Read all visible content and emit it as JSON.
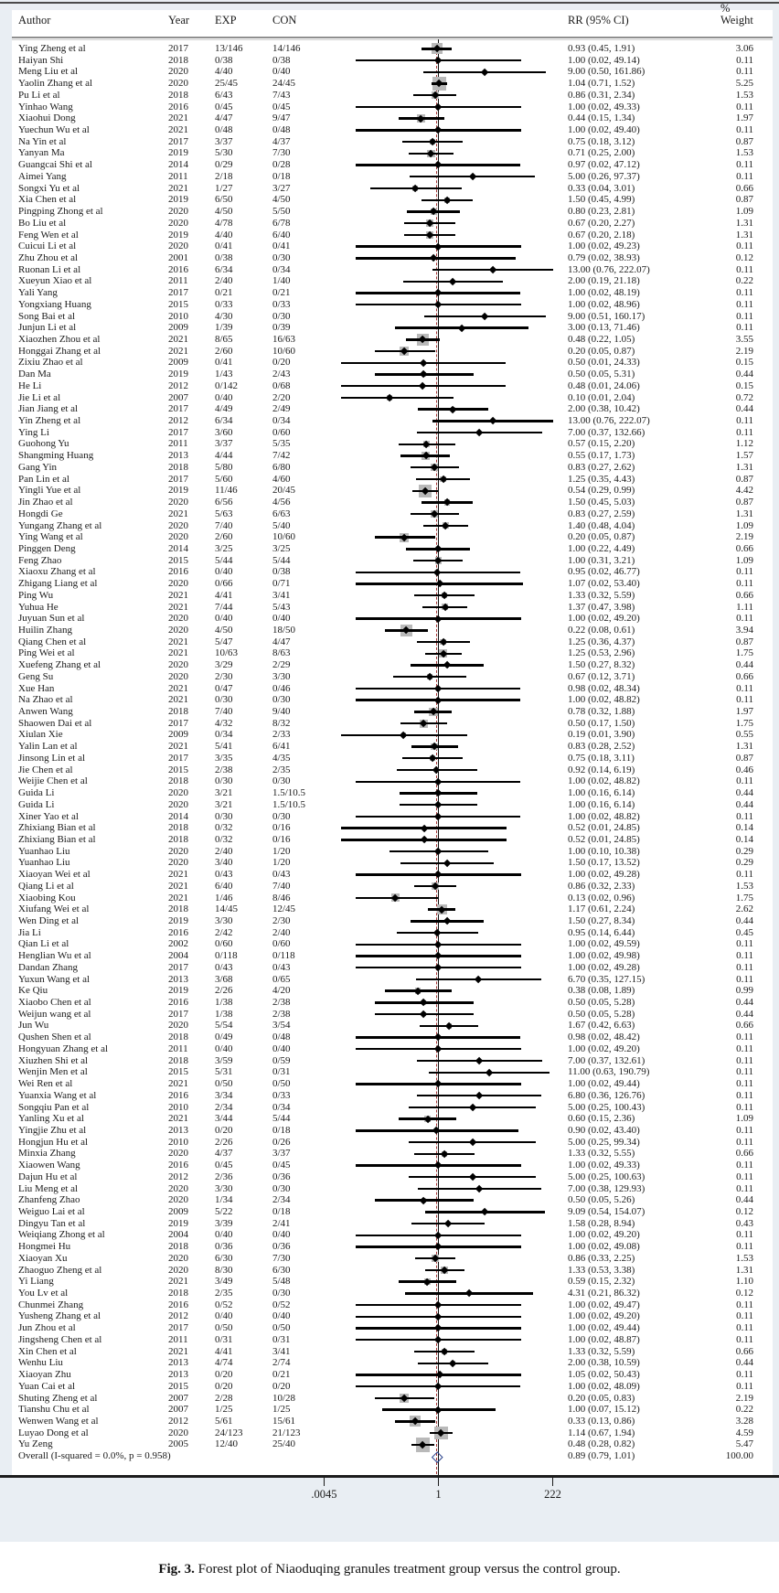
{
  "figure": {
    "header": {
      "author": "Author",
      "year": "Year",
      "exp": "EXP",
      "con": "CON",
      "rr": "RR (95% CI)",
      "weight_pct": "%",
      "weight": "Weight"
    },
    "axis": {
      "labels": [
        ".0045",
        "1",
        "222"
      ],
      "values": [
        0.0045,
        1,
        222
      ]
    },
    "overall": {
      "label": "Overall  (I-squared = 0.0%, p = 0.958)",
      "est": 0.89,
      "lo": 0.79,
      "hi": 1.01,
      "rr_text": "0.89 (0.79, 1.01)",
      "weight": "100.00"
    },
    "colors": {
      "figure_bg": "#e9eef3",
      "box": "#b9b9b9",
      "marker": "#000000",
      "ref_line": "#111111",
      "overall_line_dashed": "#a23636",
      "overall_diamond": "#27408b"
    },
    "caption": {
      "bold": "Fig. 3.",
      "text": " Forest plot of Niaoduqing granules treatment group versus the control group."
    }
  },
  "chart_data": {
    "type": "forest",
    "x_scale": "log",
    "xlim": [
      0.0045,
      222
    ],
    "x_ticks": [
      0.0045,
      1,
      222
    ],
    "null_line": 1,
    "overall_dashed_line_at": 0.89,
    "columns": [
      "author",
      "year",
      "exp",
      "con",
      "rr",
      "ci_low",
      "ci_high",
      "weight_pct"
    ],
    "studies": [
      [
        "Ying Zheng et al",
        "2017",
        "13/146",
        "14/146",
        0.93,
        0.45,
        1.91,
        "3.06"
      ],
      [
        "Haiyan Shi",
        "2018",
        "0/38",
        "0/38",
        1.0,
        0.02,
        49.14,
        "0.11"
      ],
      [
        "Meng Liu et al",
        "2020",
        "4/40",
        "0/40",
        9.0,
        0.5,
        161.86,
        "0.11"
      ],
      [
        "Yaolin Zhang et al",
        "2020",
        "25/45",
        "24/45",
        1.04,
        0.71,
        1.52,
        "5.25"
      ],
      [
        "Pu Li et al",
        "2018",
        "6/43",
        "7/43",
        0.86,
        0.31,
        2.34,
        "1.53"
      ],
      [
        "Yinhao Wang",
        "2016",
        "0/45",
        "0/45",
        1.0,
        0.02,
        49.33,
        "0.11"
      ],
      [
        "Xiaohui Dong",
        "2021",
        "4/47",
        "9/47",
        0.44,
        0.15,
        1.34,
        "1.97"
      ],
      [
        "Yuechun Wu et al",
        "2021",
        "0/48",
        "0/48",
        1.0,
        0.02,
        49.4,
        "0.11"
      ],
      [
        "Na Yin et al",
        "2017",
        "3/37",
        "4/37",
        0.75,
        0.18,
        3.12,
        "0.87"
      ],
      [
        "Yanyan Ma",
        "2019",
        "5/30",
        "7/30",
        0.71,
        0.25,
        2.0,
        "1.53"
      ],
      [
        "Guangcai Shi et al",
        "2014",
        "0/29",
        "0/28",
        0.97,
        0.02,
        47.12,
        "0.11"
      ],
      [
        "Aimei Yang",
        "2011",
        "2/18",
        "0/18",
        5.0,
        0.26,
        97.37,
        "0.11"
      ],
      [
        "Songxi Yu et al",
        "2021",
        "1/27",
        "3/27",
        0.33,
        0.04,
        3.01,
        "0.66"
      ],
      [
        "Xia Chen et al",
        "2019",
        "6/50",
        "4/50",
        1.5,
        0.45,
        4.99,
        "0.87"
      ],
      [
        "Pingping Zhong et al",
        "2020",
        "4/50",
        "5/50",
        0.8,
        0.23,
        2.81,
        "1.09"
      ],
      [
        "Bo Liu et al",
        "2020",
        "4/78",
        "6/78",
        0.67,
        0.2,
        2.27,
        "1.31"
      ],
      [
        "Feng Wen et al",
        "2019",
        "4/40",
        "6/40",
        0.67,
        0.2,
        2.18,
        "1.31"
      ],
      [
        "Cuicui Li et al",
        "2020",
        "0/41",
        "0/41",
        1.0,
        0.02,
        49.23,
        "0.11"
      ],
      [
        "Zhu Zhou et al",
        "2001",
        "0/38",
        "0/30",
        0.79,
        0.02,
        38.93,
        "0.12"
      ],
      [
        "Ruonan Li et al",
        "2016",
        "6/34",
        "0/34",
        13.0,
        0.76,
        222.07,
        "0.11"
      ],
      [
        "Xueyun Xiao et al",
        "2011",
        "2/40",
        "1/40",
        2.0,
        0.19,
        21.18,
        "0.22"
      ],
      [
        "Yali Yang",
        "2017",
        "0/21",
        "0/21",
        1.0,
        0.02,
        48.19,
        "0.11"
      ],
      [
        "Yongxiang Huang",
        "2015",
        "0/33",
        "0/33",
        1.0,
        0.02,
        48.96,
        "0.11"
      ],
      [
        "Song Bai et al",
        "2010",
        "4/30",
        "0/30",
        9.0,
        0.51,
        160.17,
        "0.11"
      ],
      [
        "Junjun Li et al",
        "2009",
        "1/39",
        "0/39",
        3.0,
        0.13,
        71.46,
        "0.11"
      ],
      [
        "Xiaozhen Zhou et al",
        "2021",
        "8/65",
        "16/63",
        0.48,
        0.22,
        1.05,
        "3.55"
      ],
      [
        "Honggai Zhang et al",
        "2021",
        "2/60",
        "10/60",
        0.2,
        0.05,
        0.87,
        "2.19"
      ],
      [
        "Zixiu Zhao et al",
        "2009",
        "0/41",
        "0/20",
        0.5,
        0.01,
        24.33,
        "0.15"
      ],
      [
        "Dan Ma",
        "2019",
        "1/43",
        "2/43",
        0.5,
        0.05,
        5.31,
        "0.44"
      ],
      [
        "He Li",
        "2012",
        "0/142",
        "0/68",
        0.48,
        0.01,
        24.06,
        "0.15"
      ],
      [
        "Jie Li et al",
        "2007",
        "0/40",
        "2/20",
        0.1,
        0.01,
        2.04,
        "0.72"
      ],
      [
        "Jian Jiang et al",
        "2017",
        "4/49",
        "2/49",
        2.0,
        0.38,
        10.42,
        "0.44"
      ],
      [
        "Yin Zheng et al",
        "2012",
        "6/34",
        "0/34",
        13.0,
        0.76,
        222.07,
        "0.11"
      ],
      [
        "Ying Li",
        "2017",
        "3/60",
        "0/60",
        7.0,
        0.37,
        132.66,
        "0.11"
      ],
      [
        "Guohong Yu",
        "2011",
        "3/37",
        "5/35",
        0.57,
        0.15,
        2.2,
        "1.12"
      ],
      [
        "Shangming Huang",
        "2013",
        "4/44",
        "7/42",
        0.55,
        0.17,
        1.73,
        "1.57"
      ],
      [
        "Gang Yin",
        "2018",
        "5/80",
        "6/80",
        0.83,
        0.27,
        2.62,
        "1.31"
      ],
      [
        "Pan Lin et al",
        "2017",
        "5/60",
        "4/60",
        1.25,
        0.35,
        4.43,
        "0.87"
      ],
      [
        "Yingli Yue et al",
        "2019",
        "11/46",
        "20/45",
        0.54,
        0.29,
        0.99,
        "4.42"
      ],
      [
        "Jin Zhao et al",
        "2020",
        "6/56",
        "4/56",
        1.5,
        0.45,
        5.03,
        "0.87"
      ],
      [
        "Hongdi Ge",
        "2021",
        "5/63",
        "6/63",
        0.83,
        0.27,
        2.59,
        "1.31"
      ],
      [
        "Yungang Zhang et al",
        "2020",
        "7/40",
        "5/40",
        1.4,
        0.48,
        4.04,
        "1.09"
      ],
      [
        "Ying Wang et al",
        "2020",
        "2/60",
        "10/60",
        0.2,
        0.05,
        0.87,
        "2.19"
      ],
      [
        "Pinggen Deng",
        "2014",
        "3/25",
        "3/25",
        1.0,
        0.22,
        4.49,
        "0.66"
      ],
      [
        "Feng Zhao",
        "2015",
        "5/44",
        "5/44",
        1.0,
        0.31,
        3.21,
        "1.09"
      ],
      [
        "Xiaoxu Zhang et al",
        "2016",
        "0/40",
        "0/38",
        0.95,
        0.02,
        46.77,
        "0.11"
      ],
      [
        "Zhigang Liang et al",
        "2020",
        "0/66",
        "0/71",
        1.07,
        0.02,
        53.4,
        "0.11"
      ],
      [
        "Ping Wu",
        "2021",
        "4/41",
        "3/41",
        1.33,
        0.32,
        5.59,
        "0.66"
      ],
      [
        "Yuhua He",
        "2021",
        "7/44",
        "5/43",
        1.37,
        0.47,
        3.98,
        "1.11"
      ],
      [
        "Juyuan Sun et al",
        "2020",
        "0/40",
        "0/40",
        1.0,
        0.02,
        49.2,
        "0.11"
      ],
      [
        "Huilin Zhang",
        "2020",
        "4/50",
        "18/50",
        0.22,
        0.08,
        0.61,
        "3.94"
      ],
      [
        "Qiang Chen et al",
        "2021",
        "5/47",
        "4/47",
        1.25,
        0.36,
        4.37,
        "0.87"
      ],
      [
        "Ping Wei et al",
        "2021",
        "10/63",
        "8/63",
        1.25,
        0.53,
        2.96,
        "1.75"
      ],
      [
        "Xuefeng Zhang et al",
        "2020",
        "3/29",
        "2/29",
        1.5,
        0.27,
        8.32,
        "0.44"
      ],
      [
        "Geng Su",
        "2020",
        "2/30",
        "3/30",
        0.67,
        0.12,
        3.71,
        "0.66"
      ],
      [
        "Xue Han",
        "2021",
        "0/47",
        "0/46",
        0.98,
        0.02,
        48.34,
        "0.11"
      ],
      [
        "Na Zhao et al",
        "2021",
        "0/30",
        "0/30",
        1.0,
        0.02,
        48.82,
        "0.11"
      ],
      [
        "Anwen Wang",
        "2018",
        "7/40",
        "9/40",
        0.78,
        0.32,
        1.88,
        "1.97"
      ],
      [
        "Shaowen Dai et al",
        "2017",
        "4/32",
        "8/32",
        0.5,
        0.17,
        1.5,
        "1.75"
      ],
      [
        "Xiulan Xie",
        "2009",
        "0/34",
        "2/33",
        0.19,
        0.01,
        3.9,
        "0.55"
      ],
      [
        "Yalin Lan et al",
        "2021",
        "5/41",
        "6/41",
        0.83,
        0.28,
        2.52,
        "1.31"
      ],
      [
        "Jinsong Lin et al",
        "2017",
        "3/35",
        "4/35",
        0.75,
        0.18,
        3.11,
        "0.87"
      ],
      [
        "Jie Chen et al",
        "2015",
        "2/38",
        "2/35",
        0.92,
        0.14,
        6.19,
        "0.46"
      ],
      [
        "Weijie Chen et al",
        "2018",
        "0/30",
        "0/30",
        1.0,
        0.02,
        48.82,
        "0.11"
      ],
      [
        "Guida Li",
        "2020",
        "3/21",
        "1.5/10.5",
        1.0,
        0.16,
        6.14,
        "0.44"
      ],
      [
        "Guida Li",
        "2020",
        "3/21",
        "1.5/10.5",
        1.0,
        0.16,
        6.14,
        "0.44"
      ],
      [
        "Xiner Yao et al",
        "2014",
        "0/30",
        "0/30",
        1.0,
        0.02,
        48.82,
        "0.11"
      ],
      [
        "Zhixiang Bian et al",
        "2018",
        "0/32",
        "0/16",
        0.52,
        0.01,
        24.85,
        "0.14"
      ],
      [
        "Zhixiang Bian et al",
        "2018",
        "0/32",
        "0/16",
        0.52,
        0.01,
        24.85,
        "0.14"
      ],
      [
        "Yuanhao Liu",
        "2020",
        "2/40",
        "1/20",
        1.0,
        0.1,
        10.38,
        "0.29"
      ],
      [
        "Yuanhao Liu",
        "2020",
        "3/40",
        "1/20",
        1.5,
        0.17,
        13.52,
        "0.29"
      ],
      [
        "Xiaoyan Wei et al",
        "2021",
        "0/43",
        "0/43",
        1.0,
        0.02,
        49.28,
        "0.11"
      ],
      [
        "Qiang Li et al",
        "2021",
        "6/40",
        "7/40",
        0.86,
        0.32,
        2.33,
        "1.53"
      ],
      [
        "Xiaobing Kou",
        "2021",
        "1/46",
        "8/46",
        0.13,
        0.02,
        0.96,
        "1.75"
      ],
      [
        "Xiufang Wei et al",
        "2018",
        "14/45",
        "12/45",
        1.17,
        0.61,
        2.24,
        "2.62"
      ],
      [
        "Wen Ding et al",
        "2019",
        "3/30",
        "2/30",
        1.5,
        0.27,
        8.34,
        "0.44"
      ],
      [
        "Jia Li",
        "2016",
        "2/42",
        "2/40",
        0.95,
        0.14,
        6.44,
        "0.45"
      ],
      [
        "Qian Li et al",
        "2002",
        "0/60",
        "0/60",
        1.0,
        0.02,
        49.59,
        "0.11"
      ],
      [
        "Henglian Wu et al",
        "2004",
        "0/118",
        "0/118",
        1.0,
        0.02,
        49.98,
        "0.11"
      ],
      [
        "Dandan Zhang",
        "2017",
        "0/43",
        "0/43",
        1.0,
        0.02,
        49.28,
        "0.11"
      ],
      [
        "Yuxun Wang et al",
        "2013",
        "3/68",
        "0/65",
        6.7,
        0.35,
        127.15,
        "0.11"
      ],
      [
        "Ke Qiu",
        "2019",
        "2/26",
        "4/20",
        0.38,
        0.08,
        1.89,
        "0.99"
      ],
      [
        "Xiaobo Chen et al",
        "2016",
        "1/38",
        "2/38",
        0.5,
        0.05,
        5.28,
        "0.44"
      ],
      [
        "Weijun wang et al",
        "2017",
        "1/38",
        "2/38",
        0.5,
        0.05,
        5.28,
        "0.44"
      ],
      [
        "Jun Wu",
        "2020",
        "5/54",
        "3/54",
        1.67,
        0.42,
        6.63,
        "0.66"
      ],
      [
        "Qushen Shen et al",
        "2018",
        "0/49",
        "0/48",
        0.98,
        0.02,
        48.42,
        "0.11"
      ],
      [
        "Hongyuan Zhang et al",
        "2011",
        "0/40",
        "0/40",
        1.0,
        0.02,
        49.2,
        "0.11"
      ],
      [
        "Xiuzhen Shi et al",
        "2018",
        "3/59",
        "0/59",
        7.0,
        0.37,
        132.61,
        "0.11"
      ],
      [
        "Wenjin Men et al",
        "2015",
        "5/31",
        "0/31",
        11.0,
        0.63,
        190.79,
        "0.11"
      ],
      [
        "Wei Ren et al",
        "2021",
        "0/50",
        "0/50",
        1.0,
        0.02,
        49.44,
        "0.11"
      ],
      [
        "Yuanxia Wang et al",
        "2016",
        "3/34",
        "0/33",
        6.8,
        0.36,
        126.76,
        "0.11"
      ],
      [
        "Songqiu Pan et al",
        "2010",
        "2/34",
        "0/34",
        5.0,
        0.25,
        100.43,
        "0.11"
      ],
      [
        "Yanling Xu et al",
        "2021",
        "3/44",
        "5/44",
        0.6,
        0.15,
        2.36,
        "1.09"
      ],
      [
        "Yingjie Zhu et al",
        "2013",
        "0/20",
        "0/18",
        0.9,
        0.02,
        43.4,
        "0.11"
      ],
      [
        "Hongjun Hu et al",
        "2010",
        "2/26",
        "0/26",
        5.0,
        0.25,
        99.34,
        "0.11"
      ],
      [
        "Minxia Zhang",
        "2020",
        "4/37",
        "3/37",
        1.33,
        0.32,
        5.55,
        "0.66"
      ],
      [
        "Xiaowen Wang",
        "2016",
        "0/45",
        "0/45",
        1.0,
        0.02,
        49.33,
        "0.11"
      ],
      [
        "Dajun Hu et al",
        "2012",
        "2/36",
        "0/36",
        5.0,
        0.25,
        100.63,
        "0.11"
      ],
      [
        "Liu Meng et al",
        "2020",
        "3/30",
        "0/30",
        7.0,
        0.38,
        129.93,
        "0.11"
      ],
      [
        "Zhanfeng Zhao",
        "2020",
        "1/34",
        "2/34",
        0.5,
        0.05,
        5.26,
        "0.44"
      ],
      [
        "Weiguo Lai et al",
        "2009",
        "5/22",
        "0/18",
        9.09,
        0.54,
        154.07,
        "0.12"
      ],
      [
        "Dingyu Tan et al",
        "2019",
        "3/39",
        "2/41",
        1.58,
        0.28,
        8.94,
        "0.43"
      ],
      [
        "Weiqiang Zhong et al",
        "2004",
        "0/40",
        "0/40",
        1.0,
        0.02,
        49.2,
        "0.11"
      ],
      [
        "Hongmei Hu",
        "2018",
        "0/36",
        "0/36",
        1.0,
        0.02,
        49.08,
        "0.11"
      ],
      [
        "Xiaoyan Xu",
        "2020",
        "6/30",
        "7/30",
        0.86,
        0.33,
        2.25,
        "1.53"
      ],
      [
        "Zhaoguo Zheng et al",
        "2020",
        "8/30",
        "6/30",
        1.33,
        0.53,
        3.38,
        "1.31"
      ],
      [
        "Yi Liang",
        "2021",
        "3/49",
        "5/48",
        0.59,
        0.15,
        2.32,
        "1.10"
      ],
      [
        "You Lv et al",
        "2018",
        "2/35",
        "0/30",
        4.31,
        0.21,
        86.32,
        "0.12"
      ],
      [
        "Chunmei Zhang",
        "2016",
        "0/52",
        "0/52",
        1.0,
        0.02,
        49.47,
        "0.11"
      ],
      [
        "Yusheng Zhang et al",
        "2012",
        "0/40",
        "0/40",
        1.0,
        0.02,
        49.2,
        "0.11"
      ],
      [
        "Jun Zhou et al",
        "2017",
        "0/50",
        "0/50",
        1.0,
        0.02,
        49.44,
        "0.11"
      ],
      [
        "Jingsheng Chen et al",
        "2011",
        "0/31",
        "0/31",
        1.0,
        0.02,
        48.87,
        "0.11"
      ],
      [
        "Xin Chen et al",
        "2021",
        "4/41",
        "3/41",
        1.33,
        0.32,
        5.59,
        "0.66"
      ],
      [
        "Wenhu Liu",
        "2013",
        "4/74",
        "2/74",
        2.0,
        0.38,
        10.59,
        "0.44"
      ],
      [
        "Xiaoyan Zhu",
        "2013",
        "0/20",
        "0/21",
        1.05,
        0.02,
        50.43,
        "0.11"
      ],
      [
        "Yuan Cai et al",
        "2015",
        "0/20",
        "0/20",
        1.0,
        0.02,
        48.09,
        "0.11"
      ],
      [
        "Shuting Zheng et al",
        "2007",
        "2/28",
        "10/28",
        0.2,
        0.05,
        0.83,
        "2.19"
      ],
      [
        "Tianshu Chu et al",
        "2007",
        "1/25",
        "1/25",
        1.0,
        0.07,
        15.12,
        "0.22"
      ],
      [
        "Wenwen Wang et al",
        "2012",
        "5/61",
        "15/61",
        0.33,
        0.13,
        0.86,
        "3.28"
      ],
      [
        "Luyao Dong et al",
        "2020",
        "24/123",
        "21/123",
        1.14,
        0.67,
        1.94,
        "4.59"
      ],
      [
        "Yu Zeng",
        "2005",
        "12/40",
        "25/40",
        0.48,
        0.28,
        0.82,
        "5.47"
      ]
    ]
  }
}
